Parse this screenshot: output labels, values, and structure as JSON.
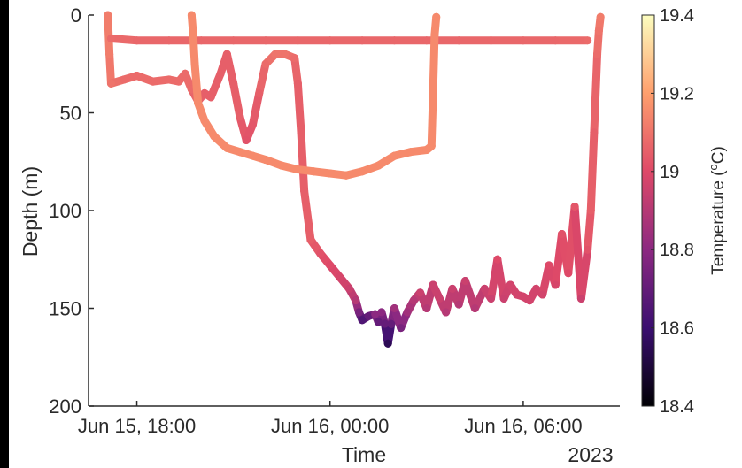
{
  "colors": {
    "background": "#ffffff",
    "left_margin_band": "#000000",
    "axis": "#2a2a2a",
    "colormap": [
      "#000004",
      "#3b0f70",
      "#8c2981",
      "#de4968",
      "#fe9f6d",
      "#fcfdbf"
    ]
  },
  "chart_data": {
    "type": "scatter",
    "title": "",
    "xlabel": "Time",
    "ylabel": "Depth (m)",
    "year_label": "2023",
    "x_unit": "hours from Jun 15 00:00",
    "xlim": [
      16.5,
      33.0
    ],
    "ylim": [
      200,
      0
    ],
    "y_reversed": true,
    "xticks": [
      {
        "value": 18,
        "label": "Jun 15, 18:00"
      },
      {
        "value": 24,
        "label": "Jun 16, 00:00"
      },
      {
        "value": 30,
        "label": "Jun 16, 06:00"
      }
    ],
    "yticks": [
      {
        "value": 0,
        "label": "0"
      },
      {
        "value": 50,
        "label": "50"
      },
      {
        "value": 100,
        "label": "100"
      },
      {
        "value": 150,
        "label": "150"
      },
      {
        "value": 200,
        "label": "200"
      }
    ],
    "grid": false,
    "colorbar": {
      "label": "Temperature (",
      "label_sup": "o",
      "label_end": "C)",
      "range": [
        18.4,
        19.4
      ],
      "ticks": [
        {
          "value": 18.4,
          "label": "18.4"
        },
        {
          "value": 18.6,
          "label": "18.6"
        },
        {
          "value": 18.8,
          "label": "18.8"
        },
        {
          "value": 19.0,
          "label": "19"
        },
        {
          "value": 19.2,
          "label": "19.2"
        },
        {
          "value": 19.4,
          "label": "19.4"
        }
      ]
    },
    "series": [
      {
        "points": [
          [
            17.1,
            0,
            19.12
          ],
          [
            17.15,
            20,
            19.12
          ],
          [
            17.2,
            35,
            19.1
          ],
          [
            17.6,
            33,
            19.08
          ],
          [
            18.0,
            31,
            19.08
          ],
          [
            18.5,
            34,
            19.08
          ],
          [
            19.0,
            33,
            19.08
          ],
          [
            19.3,
            34,
            19.08
          ],
          [
            19.5,
            30,
            19.08
          ],
          [
            19.7,
            38,
            19.08
          ],
          [
            19.9,
            44,
            19.05
          ],
          [
            20.1,
            40,
            19.05
          ],
          [
            20.3,
            42,
            19.05
          ],
          [
            20.6,
            30,
            19.05
          ],
          [
            20.8,
            20,
            19.05
          ],
          [
            21.0,
            35,
            19.05
          ],
          [
            21.2,
            52,
            19.05
          ],
          [
            21.4,
            64,
            19.02
          ],
          [
            21.6,
            56,
            19.03
          ],
          [
            21.8,
            40,
            19.05
          ],
          [
            22.0,
            25,
            19.08
          ],
          [
            22.3,
            20,
            19.1
          ],
          [
            22.6,
            20,
            19.1
          ],
          [
            22.9,
            22,
            19.08
          ],
          [
            23.0,
            35,
            19.05
          ],
          [
            23.1,
            60,
            19.05
          ],
          [
            23.2,
            90,
            19.05
          ],
          [
            23.4,
            115,
            19.05
          ],
          [
            23.7,
            122,
            19.02
          ],
          [
            24.0,
            128,
            19.0
          ],
          [
            24.3,
            134,
            18.98
          ],
          [
            24.6,
            140,
            18.95
          ],
          [
            24.8,
            146,
            18.9
          ],
          [
            24.9,
            152,
            18.75
          ],
          [
            25.0,
            156,
            18.65
          ],
          [
            25.2,
            154,
            18.7
          ],
          [
            25.4,
            153,
            18.8
          ],
          [
            25.5,
            157,
            18.7
          ],
          [
            25.6,
            152,
            18.8
          ],
          [
            25.7,
            158,
            18.7
          ],
          [
            25.8,
            168,
            18.55
          ],
          [
            25.9,
            158,
            18.7
          ],
          [
            26.0,
            150,
            18.85
          ],
          [
            26.2,
            160,
            18.75
          ],
          [
            26.4,
            152,
            18.85
          ],
          [
            26.6,
            146,
            18.9
          ],
          [
            26.8,
            142,
            18.95
          ],
          [
            27.0,
            150,
            18.9
          ],
          [
            27.2,
            138,
            18.95
          ],
          [
            27.4,
            145,
            18.95
          ],
          [
            27.6,
            152,
            18.9
          ],
          [
            27.8,
            140,
            18.95
          ],
          [
            28.0,
            148,
            18.9
          ],
          [
            28.2,
            136,
            18.95
          ],
          [
            28.5,
            150,
            18.9
          ],
          [
            28.8,
            140,
            18.95
          ],
          [
            29.0,
            145,
            18.95
          ],
          [
            29.2,
            125,
            19.0
          ],
          [
            29.4,
            145,
            18.95
          ],
          [
            29.6,
            138,
            18.97
          ],
          [
            29.8,
            143,
            18.97
          ],
          [
            30.0,
            144,
            18.97
          ],
          [
            30.2,
            146,
            18.97
          ],
          [
            30.4,
            140,
            18.97
          ],
          [
            30.6,
            143,
            18.97
          ],
          [
            30.8,
            128,
            19.0
          ],
          [
            31.0,
            138,
            18.98
          ],
          [
            31.2,
            112,
            19.02
          ],
          [
            31.4,
            132,
            19.0
          ],
          [
            31.6,
            98,
            19.03
          ],
          [
            31.8,
            145,
            18.95
          ],
          [
            32.0,
            120,
            19.02
          ],
          [
            32.1,
            100,
            19.05
          ],
          [
            32.2,
            60,
            19.05
          ],
          [
            32.3,
            20,
            19.08
          ],
          [
            32.35,
            8,
            19.1
          ],
          [
            32.4,
            1,
            19.12
          ]
        ]
      },
      {
        "points": [
          [
            17.2,
            12,
            19.08
          ],
          [
            18.0,
            13,
            19.07
          ],
          [
            19.0,
            13,
            19.07
          ],
          [
            20.0,
            13,
            19.07
          ],
          [
            21.0,
            13,
            19.07
          ],
          [
            22.0,
            13,
            19.07
          ],
          [
            23.0,
            13,
            19.07
          ],
          [
            24.0,
            13,
            19.07
          ],
          [
            25.0,
            13,
            19.07
          ],
          [
            26.0,
            13,
            19.07
          ],
          [
            27.0,
            13,
            19.07
          ],
          [
            28.0,
            13,
            19.07
          ],
          [
            29.0,
            13,
            19.07
          ],
          [
            30.0,
            13,
            19.07
          ],
          [
            31.0,
            13,
            19.07
          ],
          [
            32.0,
            13,
            19.08
          ]
        ]
      },
      {
        "points": [
          [
            19.7,
            0,
            19.15
          ],
          [
            19.75,
            10,
            19.15
          ],
          [
            19.8,
            25,
            19.15
          ],
          [
            19.9,
            45,
            19.15
          ],
          [
            20.1,
            54,
            19.15
          ],
          [
            20.4,
            62,
            19.15
          ],
          [
            20.8,
            68,
            19.15
          ],
          [
            21.2,
            70,
            19.15
          ],
          [
            21.6,
            72,
            19.15
          ],
          [
            22.0,
            74,
            19.15
          ],
          [
            22.5,
            77,
            19.15
          ],
          [
            23.0,
            79,
            19.15
          ],
          [
            23.5,
            80,
            19.15
          ],
          [
            24.0,
            81,
            19.15
          ],
          [
            24.5,
            82,
            19.15
          ],
          [
            25.0,
            80,
            19.15
          ],
          [
            25.5,
            77,
            19.15
          ],
          [
            26.0,
            72,
            19.15
          ],
          [
            26.5,
            70,
            19.15
          ],
          [
            27.0,
            69,
            19.15
          ],
          [
            27.15,
            67,
            19.15
          ],
          [
            27.2,
            40,
            19.15
          ],
          [
            27.25,
            10,
            19.15
          ],
          [
            27.3,
            1,
            19.15
          ]
        ]
      }
    ]
  }
}
